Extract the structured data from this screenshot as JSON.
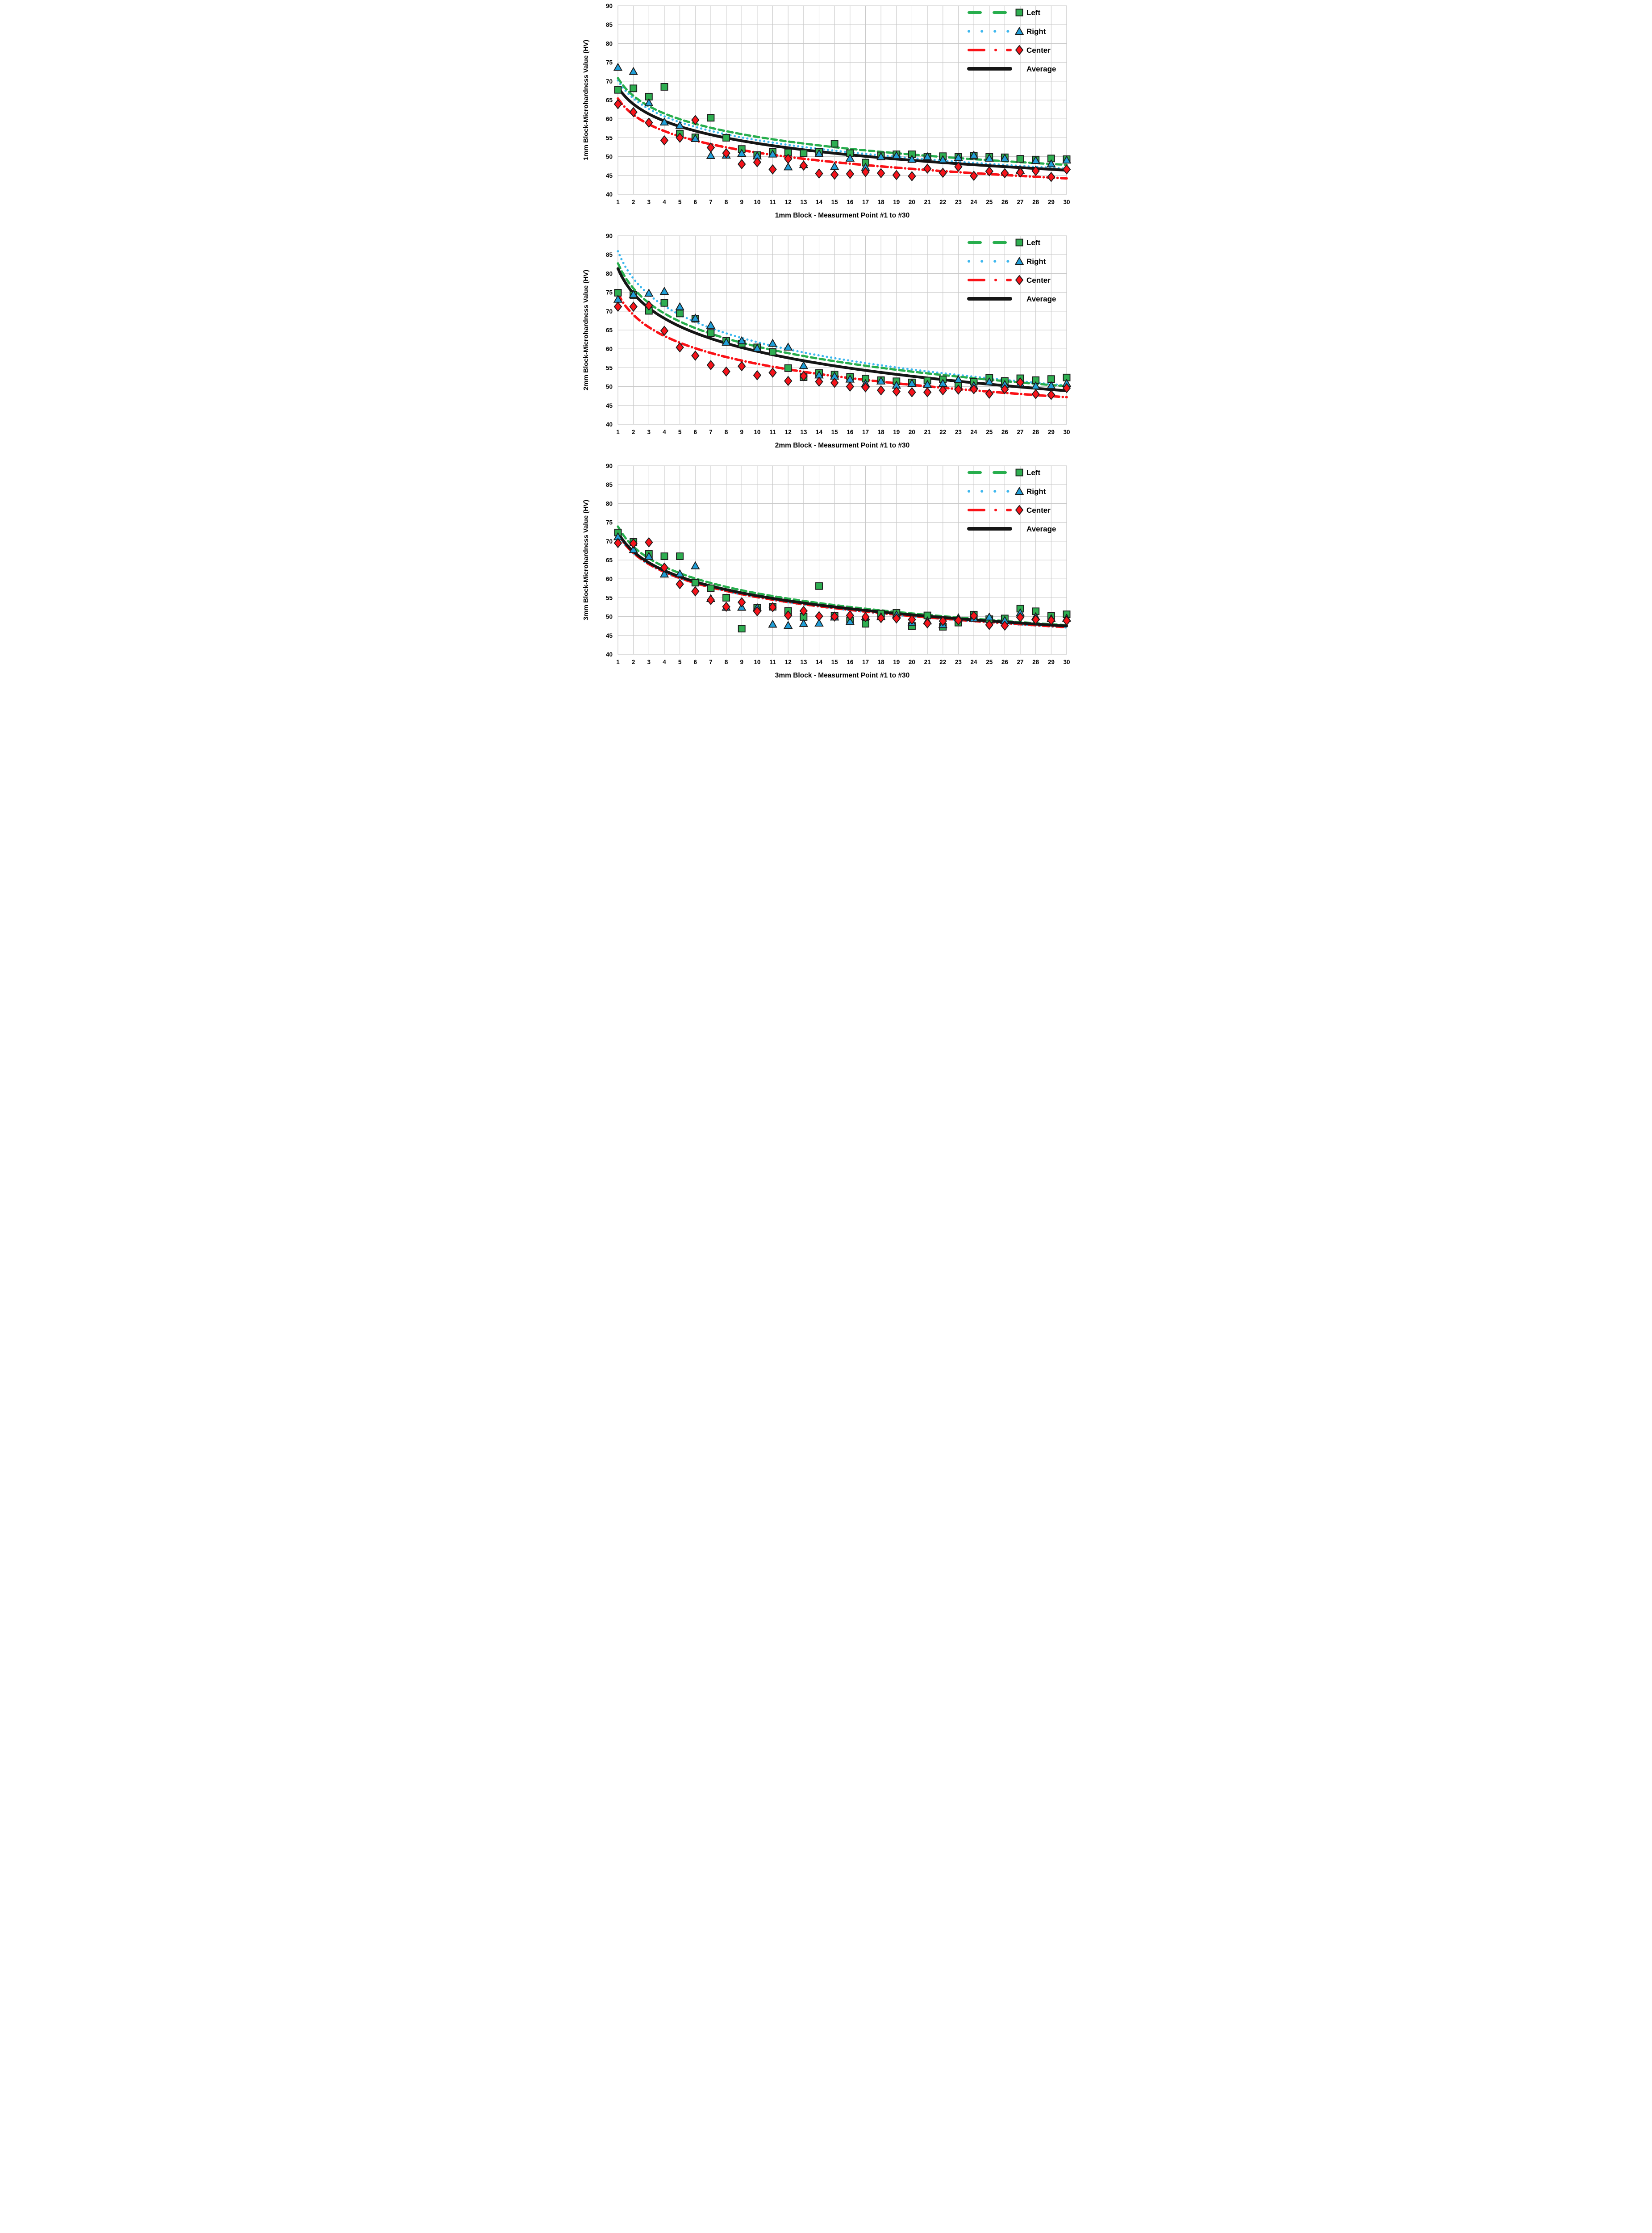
{
  "page": {
    "background": "#ffffff",
    "description": "Three stacked microhardness scatter charts with logarithmic trend lines"
  },
  "colors": {
    "left_line": "#27ae4d",
    "left_fill": "#2fae51",
    "right_line": "#3db7ee",
    "right_fill": "#219fd8",
    "center_line": "#fa1116",
    "center_fill": "#f6141b",
    "average_line": "#151515",
    "marker_border": "#1b1b1b",
    "grid": "#c9c9c9",
    "text": "#000000"
  },
  "legend": {
    "position": "top-right",
    "items": [
      {
        "key": "left",
        "label": "Left",
        "marker": "square",
        "line_style": "dashed"
      },
      {
        "key": "right",
        "label": "Right",
        "marker": "triangle",
        "line_style": "dotted"
      },
      {
        "key": "center",
        "label": "Center",
        "marker": "diamond",
        "line_style": "dash-dot"
      },
      {
        "key": "average",
        "label": "Average",
        "marker": "none",
        "line_style": "solid"
      }
    ]
  },
  "chart_data": [
    {
      "type": "scatter",
      "ylabel": "1mm Block-Microhardness Value (HV)",
      "xlabel": "1mm Block - Measurment Point #1 to #30",
      "ylim": [
        40,
        90
      ],
      "yticks": [
        90,
        85,
        80,
        75,
        70,
        65,
        60,
        55,
        50,
        45,
        40
      ],
      "x": [
        1,
        2,
        3,
        4,
        5,
        6,
        7,
        8,
        9,
        10,
        11,
        12,
        13,
        14,
        15,
        16,
        17,
        18,
        19,
        20,
        21,
        22,
        23,
        24,
        25,
        26,
        27,
        28,
        29,
        30
      ],
      "grid": true,
      "legend_position": "top-right",
      "series": [
        {
          "name": "Left",
          "marker": "square",
          "values": [
            67.7,
            68.1,
            65.9,
            68.5,
            56.1,
            55.1,
            60.3,
            55.0,
            52.0,
            50.4,
            51.3,
            51.1,
            50.9,
            51.2,
            53.4,
            50.9,
            48.4,
            50.3,
            50.6,
            50.6,
            50.0,
            50.1,
            49.9,
            50.2,
            49.9,
            49.8,
            49.4,
            49.2,
            49.5,
            49.3
          ],
          "trend": {
            "type": "log",
            "intercept": 70.8,
            "slope": -6.76
          }
        },
        {
          "name": "Right",
          "marker": "triangle",
          "values": [
            73.7,
            72.6,
            64.3,
            59.2,
            58.3,
            54.8,
            50.3,
            50.4,
            50.9,
            50.2,
            50.7,
            47.3,
            47.9,
            50.8,
            47.4,
            49.6,
            47.2,
            50.0,
            50.3,
            49.3,
            50.0,
            49.2,
            49.8,
            50.4,
            49.6,
            49.6,
            46.4,
            49.0,
            48.1,
            49.1
          ],
          "trend": {
            "type": "log",
            "intercept": 70.2,
            "slope": -6.88
          }
        },
        {
          "name": "Center",
          "marker": "diamond",
          "values": [
            63.9,
            61.8,
            59.0,
            54.3,
            55.0,
            59.7,
            52.4,
            50.9,
            48.0,
            48.5,
            46.6,
            49.4,
            47.6,
            45.5,
            45.2,
            45.4,
            45.9,
            45.6,
            45.1,
            44.8,
            46.8,
            45.7,
            47.3,
            44.9,
            46.1,
            45.6,
            45.8,
            46.2,
            44.6,
            46.6
          ],
          "trend": {
            "type": "log",
            "intercept": 65.4,
            "slope": -6.23
          }
        },
        {
          "name": "Average",
          "marker": "none",
          "values": [],
          "trend": {
            "type": "log",
            "intercept": 68.4,
            "slope": -6.47
          }
        }
      ]
    },
    {
      "type": "scatter",
      "ylabel": "2mm Block-Microhardness Value (HV)",
      "xlabel": "2mm Block - Measurment Point #1 to #30",
      "ylim": [
        40,
        90
      ],
      "yticks": [
        90,
        85,
        80,
        75,
        70,
        65,
        60,
        55,
        50,
        45,
        40
      ],
      "x": [
        1,
        2,
        3,
        4,
        5,
        6,
        7,
        8,
        9,
        10,
        11,
        12,
        13,
        14,
        15,
        16,
        17,
        18,
        19,
        20,
        21,
        22,
        23,
        24,
        25,
        26,
        27,
        28,
        29,
        30
      ],
      "grid": true,
      "legend_position": "top-right",
      "series": [
        {
          "name": "Left",
          "marker": "square",
          "values": [
            74.9,
            74.3,
            70.1,
            72.2,
            69.4,
            68.0,
            64.2,
            62.1,
            61.4,
            60.4,
            59.2,
            54.9,
            52.5,
            53.6,
            53.2,
            52.6,
            52.1,
            51.7,
            51.4,
            51.1,
            51.6,
            51.9,
            50.5,
            51.3,
            52.3,
            51.5,
            52.2,
            51.7,
            52.0,
            52.4
          ],
          "trend": {
            "type": "log",
            "intercept": 82.7,
            "slope": -9.59
          }
        },
        {
          "name": "Right",
          "marker": "triangle",
          "values": [
            73.2,
            74.5,
            74.8,
            75.3,
            71.2,
            68.2,
            66.3,
            61.8,
            62.2,
            60.2,
            61.5,
            60.5,
            55.6,
            53.1,
            52.8,
            52.0,
            50.8,
            51.5,
            50.4,
            50.9,
            50.6,
            50.9,
            51.9,
            50.3,
            51.3,
            50.6,
            50.8,
            50.2,
            50.3,
            50.9
          ],
          "trend": {
            "type": "log",
            "intercept": 85.9,
            "slope": -10.47
          }
        },
        {
          "name": "Center",
          "marker": "diamond",
          "values": [
            71.2,
            71.2,
            71.5,
            64.8,
            60.4,
            58.2,
            55.7,
            54.0,
            55.4,
            53.0,
            53.7,
            51.5,
            52.8,
            51.3,
            51.0,
            50.0,
            49.8,
            49.0,
            48.7,
            48.5,
            48.5,
            49.0,
            49.2,
            49.3,
            48.1,
            49.3,
            51.1,
            48.0,
            47.8,
            49.6
          ],
          "trend": {
            "type": "log",
            "intercept": 74.6,
            "slope": -8.06
          }
        },
        {
          "name": "Average",
          "marker": "none",
          "values": [],
          "trend": {
            "type": "log",
            "intercept": 81.3,
            "slope": -9.53
          }
        }
      ]
    },
    {
      "type": "scatter",
      "ylabel": "3mm Block-Microhardness Value (HV)",
      "xlabel": "3mm Block - Measurment Point #1 to #30",
      "ylim": [
        40,
        90
      ],
      "yticks": [
        90,
        85,
        80,
        75,
        70,
        65,
        60,
        55,
        50,
        45,
        40
      ],
      "x": [
        1,
        2,
        3,
        4,
        5,
        6,
        7,
        8,
        9,
        10,
        11,
        12,
        13,
        14,
        15,
        16,
        17,
        18,
        19,
        20,
        21,
        22,
        23,
        24,
        25,
        26,
        27,
        28,
        29,
        30
      ],
      "grid": true,
      "legend_position": "top-right",
      "series": [
        {
          "name": "Left",
          "marker": "square",
          "values": [
            72.3,
            69.8,
            66.6,
            66.0,
            66.0,
            59.0,
            57.5,
            55.0,
            46.8,
            52.3,
            52.6,
            51.5,
            49.9,
            58.1,
            50.2,
            48.9,
            48.1,
            50.8,
            51.0,
            47.5,
            50.3,
            47.3,
            48.4,
            50.5,
            49.3,
            49.5,
            52.1,
            51.4,
            50.2,
            50.6
          ],
          "trend": {
            "type": "log",
            "intercept": 73.9,
            "slope": -7.7
          }
        },
        {
          "name": "Right",
          "marker": "triangle",
          "values": [
            71.2,
            67.8,
            66.0,
            61.3,
            61.4,
            63.5,
            54.8,
            52.5,
            52.5,
            52.4,
            48.0,
            47.7,
            48.2,
            48.3,
            49.9,
            48.7,
            50.0,
            50.0,
            50.5,
            48.4,
            48.9,
            47.9,
            49.7,
            49.6,
            49.9,
            49.0,
            51.0,
            50.0,
            49.5,
            49.6
          ],
          "trend": {
            "type": "log",
            "intercept": 71.8,
            "slope": -7.26
          }
        },
        {
          "name": "Center",
          "marker": "diamond",
          "values": [
            69.5,
            69.4,
            69.7,
            63.0,
            58.6,
            56.7,
            54.4,
            52.6,
            53.8,
            51.4,
            52.5,
            50.3,
            51.5,
            50.1,
            50.0,
            50.3,
            49.9,
            49.6,
            49.5,
            49.2,
            48.2,
            48.8,
            49.0,
            50.2,
            47.8,
            47.6,
            49.8,
            49.2,
            49.0,
            48.9
          ],
          "trend": {
            "type": "log",
            "intercept": 71.9,
            "slope": -7.26
          }
        },
        {
          "name": "Average",
          "marker": "none",
          "values": [],
          "trend": {
            "type": "log",
            "intercept": 72.3,
            "slope": -7.29
          }
        }
      ]
    }
  ]
}
